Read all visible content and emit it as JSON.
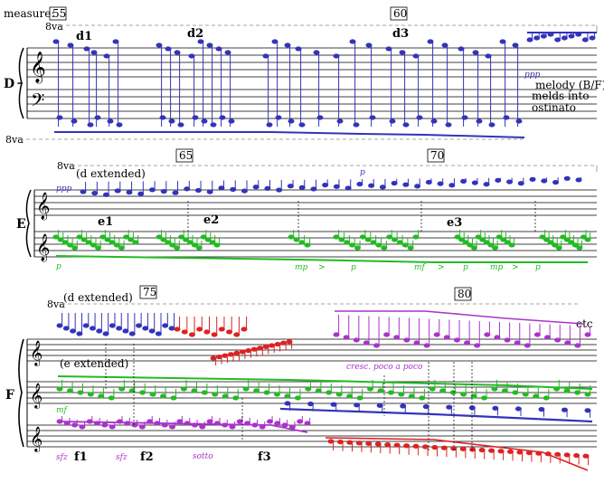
{
  "header": {
    "measure_label": "measure:",
    "measure_numbers": [
      "55",
      "60",
      "65",
      "70",
      "75",
      "80"
    ]
  },
  "ottava": {
    "up": "8va",
    "down": "8va"
  },
  "sections": [
    {
      "id": "D",
      "label": "D",
      "subsections": [
        "d1",
        "d2",
        "d3"
      ]
    },
    {
      "id": "E",
      "label": "E",
      "subsections": [
        "e1",
        "e2",
        "e3"
      ],
      "bracket_text": "(d extended)"
    },
    {
      "id": "F",
      "label": "F",
      "subsections": [
        "f1",
        "f2",
        "f3"
      ],
      "bracket_text": "(d extended)",
      "inner_text": "(e extended)"
    }
  ],
  "annotations": {
    "melody_note_lines": [
      "melody (B/F)",
      "melds into",
      "ostinato"
    ],
    "etc": "etc",
    "cresc": "cresc. poco a poco"
  },
  "dynamics": {
    "ppp_d": "ppp",
    "ppp_e": "ppp",
    "p_e_start": "p",
    "p_e_top": "p",
    "e_hairpins": [
      "mp",
      ">",
      "p",
      "mf",
      ">",
      "p",
      "mp",
      ">",
      "p"
    ],
    "mf_f": "mf",
    "f_lower": [
      "sfz",
      "sfz",
      "sotto"
    ]
  },
  "colors": {
    "blue": "#3333bb",
    "green": "#22bb22",
    "red": "#dd2222",
    "purple": "#aa33cc",
    "black": "#000000",
    "dashed": "#888888"
  }
}
